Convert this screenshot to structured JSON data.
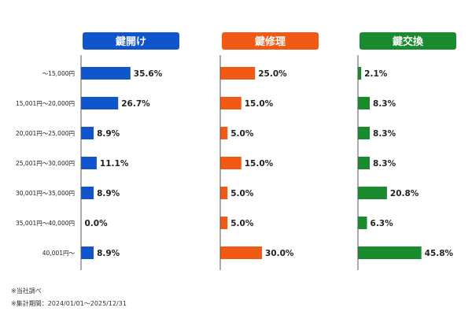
{
  "chart_data": [
    {
      "type": "bar",
      "orientation": "horizontal",
      "title": "鍵開け",
      "color": "#1155cc",
      "categories": [
        "～15,000円",
        "15,001円～20,000円",
        "20,001円～25,000円",
        "25,001円～30,000円",
        "30,001円～35,000円",
        "35,001円～40,000円",
        "40,001円～"
      ],
      "values": [
        35.6,
        26.7,
        8.9,
        11.1,
        8.9,
        0.0,
        8.9
      ],
      "labels": [
        "35.6%",
        "26.7%",
        "8.9%",
        "11.1%",
        "8.9%",
        "0.0%",
        "8.9%"
      ]
    },
    {
      "type": "bar",
      "orientation": "horizontal",
      "title": "鍵修理",
      "color": "#f05a14",
      "categories": [
        "～15,000円",
        "15,001円～20,000円",
        "20,001円～25,000円",
        "25,001円～30,000円",
        "30,001円～35,000円",
        "35,001円～40,000円",
        "40,001円～"
      ],
      "values": [
        25.0,
        15.0,
        5.0,
        15.0,
        5.0,
        5.0,
        30.0
      ],
      "labels": [
        "25.0%",
        "15.0%",
        "5.0%",
        "15.0%",
        "5.0%",
        "5.0%",
        "30.0%"
      ]
    },
    {
      "type": "bar",
      "orientation": "horizontal",
      "title": "鍵交換",
      "color": "#1a8a2e",
      "categories": [
        "～15,000円",
        "15,001円～20,000円",
        "20,001円～25,000円",
        "25,001円～30,000円",
        "30,001円～35,000円",
        "35,001円～40,000円",
        "40,001円～"
      ],
      "values": [
        2.1,
        8.3,
        8.3,
        8.3,
        20.8,
        6.3,
        45.8
      ],
      "labels": [
        "2.1%",
        "8.3%",
        "8.3%",
        "8.3%",
        "20.8%",
        "6.3%",
        "45.8%"
      ]
    }
  ],
  "footnotes": {
    "source": "※当社調べ",
    "period": "※集計期間：2024/01/01～2025/12/31"
  }
}
